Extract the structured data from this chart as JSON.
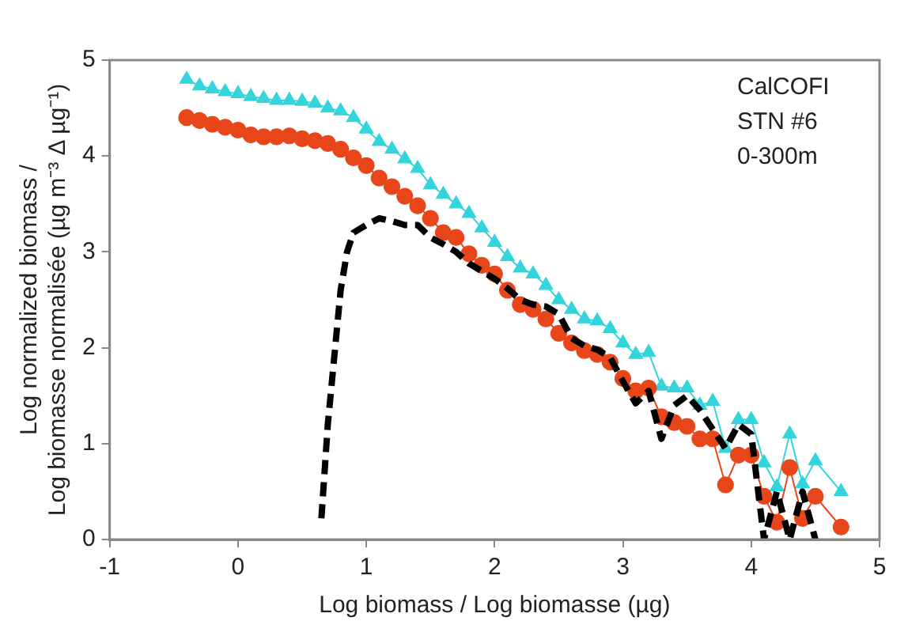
{
  "chart_data": {
    "type": "scatter",
    "xlabel": "Log biomass / Log biomasse (µg)",
    "ylabel": "Log normalized biomass / Log biomasse normalisée (µg m⁻³ Δ µg⁻¹)",
    "annotations": [
      "CalCOFI",
      "STN #6",
      "0-300m"
    ],
    "xlim": [
      -1,
      5
    ],
    "xticks": [
      -1,
      0,
      1,
      2,
      3,
      4,
      5
    ],
    "ylim": [
      0,
      5
    ],
    "yticks": [
      0,
      1,
      2,
      3,
      4,
      5
    ],
    "grid": false,
    "legend": false,
    "series": [
      {
        "type": "line",
        "marker": "triangle",
        "color": "#33d4dc",
        "x": [
          -0.4,
          -0.3,
          -0.2,
          -0.1,
          0,
          0.1,
          0.2,
          0.3,
          0.4,
          0.5,
          0.6,
          0.7,
          0.8,
          0.9,
          1.0,
          1.1,
          1.2,
          1.3,
          1.4,
          1.5,
          1.6,
          1.7,
          1.8,
          1.9,
          2.0,
          2.1,
          2.2,
          2.3,
          2.4,
          2.5,
          2.6,
          2.7,
          2.8,
          2.9,
          3.0,
          3.1,
          3.2,
          3.3,
          3.4,
          3.5,
          3.6,
          3.7,
          3.8,
          3.9,
          4.0,
          4.1,
          4.2,
          4.3,
          4.4,
          4.5,
          4.7
        ],
        "values": [
          4.8,
          4.73,
          4.7,
          4.67,
          4.65,
          4.62,
          4.6,
          4.58,
          4.58,
          4.57,
          4.55,
          4.5,
          4.47,
          4.4,
          4.28,
          4.15,
          4.07,
          3.97,
          3.87,
          3.7,
          3.6,
          3.5,
          3.4,
          3.25,
          3.1,
          2.95,
          2.83,
          2.77,
          2.65,
          2.5,
          2.4,
          2.3,
          2.28,
          2.2,
          2.05,
          1.93,
          1.95,
          1.6,
          1.58,
          1.58,
          1.4,
          1.44,
          0.95,
          1.25,
          1.25,
          0.8,
          0.55,
          1.1,
          0.58,
          0.82,
          0.5
        ]
      },
      {
        "type": "line",
        "marker": "circle",
        "color": "#e8461a",
        "x": [
          -0.4,
          -0.3,
          -0.2,
          -0.1,
          0,
          0.1,
          0.2,
          0.3,
          0.4,
          0.5,
          0.6,
          0.7,
          0.8,
          0.9,
          1.0,
          1.1,
          1.2,
          1.3,
          1.4,
          1.5,
          1.6,
          1.7,
          1.8,
          1.9,
          2.0,
          2.1,
          2.2,
          2.3,
          2.4,
          2.5,
          2.6,
          2.7,
          2.8,
          2.9,
          3.0,
          3.1,
          3.2,
          3.3,
          3.4,
          3.5,
          3.6,
          3.7,
          3.8,
          3.9,
          4.0,
          4.1,
          4.2,
          4.3,
          4.4,
          4.5,
          4.7
        ],
        "values": [
          4.4,
          4.37,
          4.33,
          4.3,
          4.27,
          4.22,
          4.2,
          4.2,
          4.21,
          4.18,
          4.16,
          4.13,
          4.07,
          3.98,
          3.9,
          3.77,
          3.68,
          3.58,
          3.48,
          3.35,
          3.2,
          3.15,
          2.98,
          2.86,
          2.77,
          2.6,
          2.45,
          2.4,
          2.3,
          2.15,
          2.05,
          1.97,
          1.93,
          1.85,
          1.68,
          1.55,
          1.58,
          1.28,
          1.22,
          1.18,
          1.05,
          1.05,
          0.57,
          0.88,
          0.88,
          0.45,
          0.18,
          0.75,
          0.22,
          0.45,
          0.13
        ]
      },
      {
        "type": "line",
        "marker": "none",
        "line_style": "dashed",
        "color": "#000000",
        "x": [
          0.65,
          0.7,
          0.75,
          0.8,
          0.85,
          0.9,
          1.0,
          1.1,
          1.2,
          1.3,
          1.4,
          1.5,
          1.6,
          1.7,
          1.8,
          1.9,
          2.0,
          2.1,
          2.2,
          2.3,
          2.4,
          2.5,
          2.6,
          2.7,
          2.8,
          2.9,
          3.0,
          3.1,
          3.2,
          3.3,
          3.4,
          3.5,
          3.6,
          3.7,
          3.8,
          3.9,
          4.0,
          4.1,
          4.2,
          4.3,
          4.4,
          4.5
        ],
        "values": [
          0.22,
          1.2,
          1.9,
          2.6,
          3.0,
          3.2,
          3.28,
          3.35,
          3.32,
          3.28,
          3.28,
          3.15,
          3.08,
          3.0,
          2.88,
          2.8,
          2.72,
          2.62,
          2.5,
          2.45,
          2.43,
          2.35,
          2.1,
          2.02,
          1.98,
          1.9,
          1.65,
          1.42,
          1.55,
          1.05,
          1.4,
          1.5,
          1.35,
          1.15,
          0.95,
          1.2,
          1.1,
          0.0,
          0.5,
          0.0,
          0.5,
          0.0
        ]
      }
    ]
  }
}
